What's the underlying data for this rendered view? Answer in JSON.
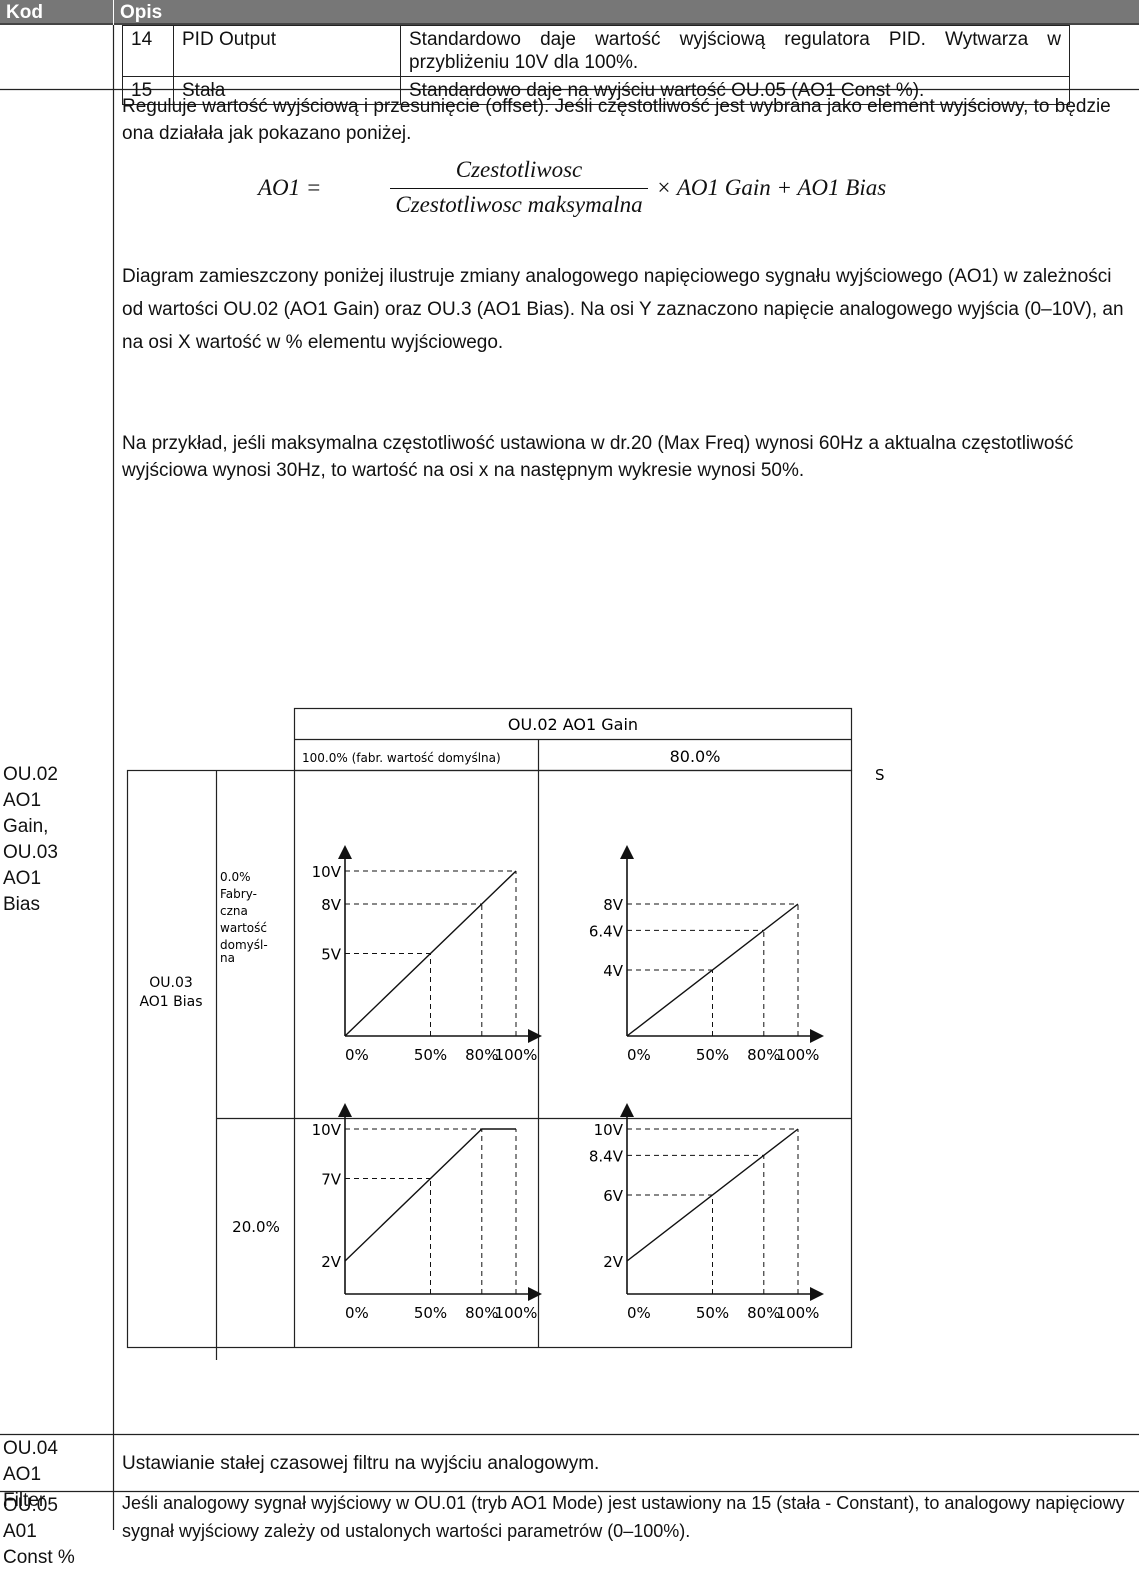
{
  "header": {
    "col_code": "Kod",
    "col_desc": "Opis"
  },
  "subtable": [
    {
      "num": "14",
      "name": "PID Output",
      "desc": "Standardowo daje wartość wyjściową regulatora PID. Wytwarza w przybliżeniu 10V dla 100%."
    },
    {
      "num": "15",
      "name": "Stała",
      "desc": "Standardowo daje na wyjściu wartość OU.05 (AO1 Const %)."
    }
  ],
  "row_gain": {
    "code_lines": [
      "OU.02",
      "AO1",
      "Gain,",
      "OU.03",
      "AO1",
      "Bias"
    ],
    "intro": "Reguluje wartość wyjściową i przesunięcie (offset). Jeśli częstotliwość jest wybrana jako element wyjściowy, to będzie ona działała jak pokazano poniżej.",
    "formula": {
      "lhs": "AO1 =",
      "numerator": "Czestotliwosc",
      "denominator": "Czestotliwosc maksymalna",
      "rhs": "× AO1 Gain + AO1 Bias"
    },
    "diagram_desc": "Diagram zamieszczony poniżej ilustruje zmiany analogowego napięciowego sygnału wyjściowego (AO1) w zależności od wartości OU.02 (AO1 Gain) oraz OU.3 (AO1 Bias). Na osi Y zaznaczono napięcie analogowego wyjścia (0–10V), an na osi X wartość w % elementu wyjściowego.",
    "example": "Na przykład, jeśli maksymalna częstotliwość ustawiona w dr.20 (Max Freq) wynosi 60Hz a aktualna częstotliwość wyjściowa wynosi 30Hz, to wartość na osi x na następnym wykresie wynosi 50%."
  },
  "diagram": {
    "gain_header": "OU.02 AO1 Gain",
    "gain_col1": "100.0% (fabr. wartość domyślna)",
    "gain_col2": "80.0%",
    "stray_letter": "S",
    "bias_label_1": "OU.03",
    "bias_label_2": "AO1 Bias",
    "bias_row1": [
      "0.0%",
      "Fabry-",
      "czna",
      "wartość",
      "domyśl-",
      "na"
    ],
    "bias_row2": "20.0%",
    "x_ticks": [
      "0%",
      "50%",
      "80%",
      "100%"
    ],
    "plots": [
      {
        "id": "p11",
        "labels": [
          "10V",
          "8V",
          "5V"
        ],
        "start": 0,
        "end": 10,
        "gain": 1.0,
        "bias": 0
      },
      {
        "id": "p12",
        "labels": [
          "8V",
          "6.4V",
          "4V"
        ],
        "start": 0,
        "end": 8,
        "gain": 0.8,
        "bias": 0
      },
      {
        "id": "p21",
        "labels": [
          "10V",
          "7V",
          "2V"
        ],
        "start": 2,
        "end": 10,
        "gain": 1.0,
        "bias": 2
      },
      {
        "id": "p22",
        "labels": [
          "10V",
          "8.4V",
          "6V",
          "2V"
        ],
        "start": 2,
        "end": 10,
        "gain": 0.8,
        "bias": 2
      }
    ]
  },
  "row_filter": {
    "code_lines": [
      "OU.04",
      "AO1",
      "Filter"
    ],
    "desc": "Ustawianie stałej czasowej filtru na wyjściu analogowym."
  },
  "row_const": {
    "code_lines": [
      "OU.05",
      "A01",
      "Const %"
    ],
    "desc": "Jeśli analogowy sygnał wyjściowy w OU.01 (tryb AO1 Mode) jest ustawiony na 15 (stała - Constant), to analogowy napięciowy sygnał wyjściowy zależy od ustalonych wartości parametrów (0–100%)."
  }
}
